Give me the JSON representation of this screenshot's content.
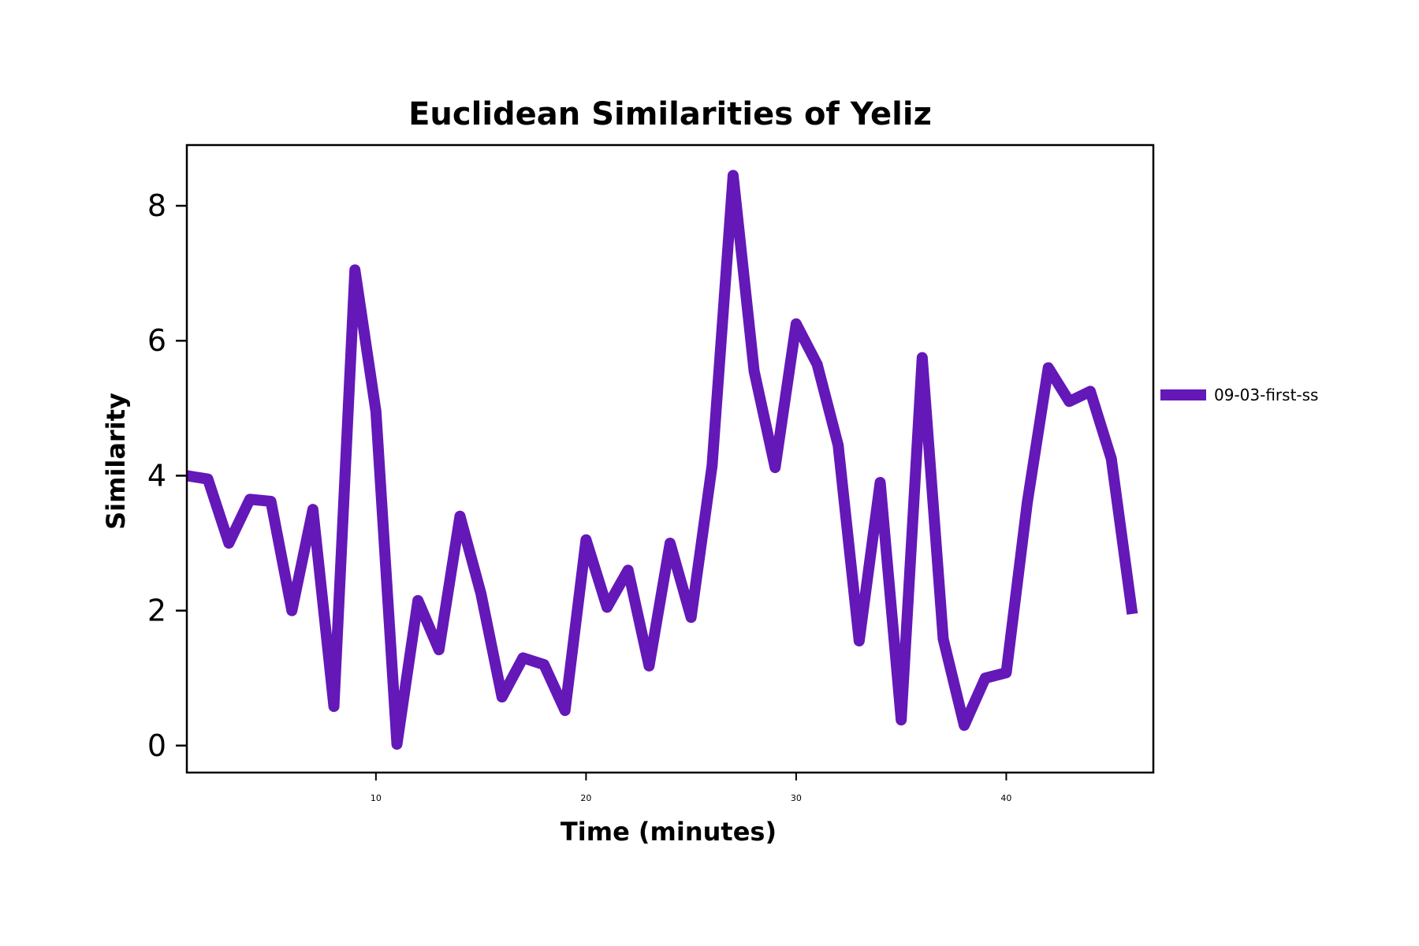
{
  "chart_data": {
    "type": "line",
    "title": "Euclidean Similarities of Yeliz",
    "xlabel": "Time (minutes)",
    "ylabel": "Similarity",
    "xlim": [
      1,
      47
    ],
    "ylim": [
      -0.4,
      8.9
    ],
    "xticks": [
      10,
      20,
      30,
      40
    ],
    "yticks": [
      0,
      2,
      4,
      6,
      8
    ],
    "grid": false,
    "legend_position": "right",
    "series": [
      {
        "name": "09-03-first-ss",
        "color": "#6418b8",
        "x": [
          1,
          2,
          3,
          4,
          5,
          6,
          7,
          8,
          9,
          10,
          11,
          12,
          13,
          14,
          15,
          16,
          17,
          18,
          19,
          20,
          21,
          22,
          23,
          24,
          25,
          26,
          27,
          28,
          29,
          30,
          31,
          32,
          33,
          34,
          35,
          36,
          37,
          38,
          39,
          40,
          41,
          42,
          43,
          44,
          45,
          46
        ],
        "y": [
          4.0,
          3.95,
          3.0,
          3.65,
          3.62,
          2.0,
          3.5,
          0.58,
          7.05,
          4.95,
          0.02,
          2.15,
          1.42,
          3.4,
          2.25,
          0.72,
          1.3,
          1.2,
          0.52,
          3.05,
          2.05,
          2.6,
          1.18,
          3.0,
          1.9,
          4.15,
          8.45,
          5.55,
          4.12,
          6.25,
          5.65,
          4.45,
          1.55,
          3.9,
          0.38,
          5.75,
          1.58,
          0.3,
          1.0,
          1.08,
          3.6,
          5.6,
          5.1,
          5.25,
          4.25,
          1.95
        ]
      }
    ]
  }
}
